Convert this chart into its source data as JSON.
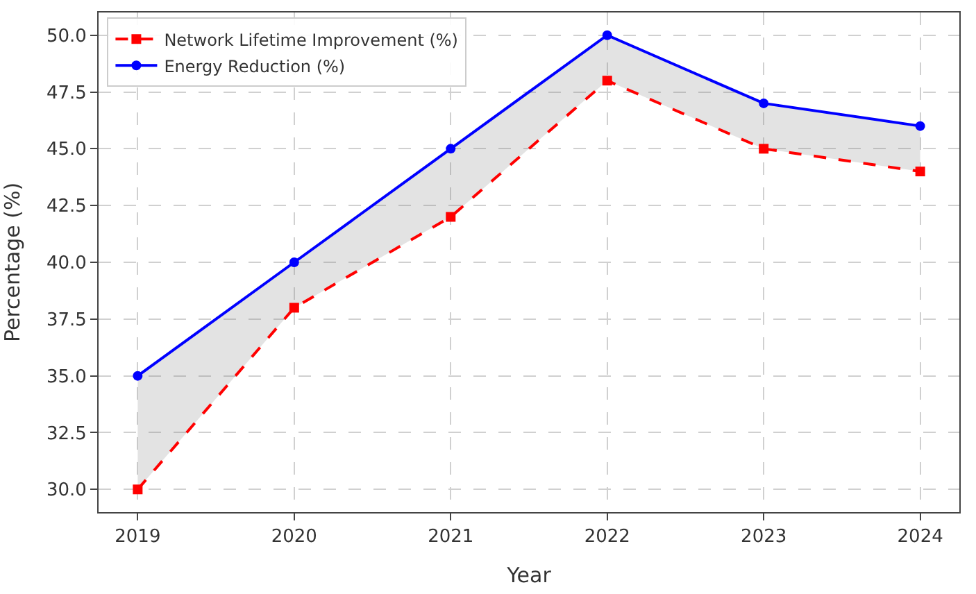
{
  "chart_data": {
    "type": "line",
    "xlabel": "Year",
    "ylabel": "Percentage (%)",
    "x": [
      2019,
      2020,
      2021,
      2022,
      2023,
      2024
    ],
    "xlim": [
      2018.75,
      2024.25
    ],
    "xticks": [
      2019,
      2020,
      2021,
      2022,
      2023,
      2024
    ],
    "ylim": [
      29,
      51
    ],
    "yticks": [
      {
        "value": 30,
        "label": "30.0"
      },
      {
        "value": 32.5,
        "label": "32.5"
      },
      {
        "value": 35,
        "label": "35.0"
      },
      {
        "value": 37.5,
        "label": "37.5"
      },
      {
        "value": 40,
        "label": "40.0"
      },
      {
        "value": 42.5,
        "label": "42.5"
      },
      {
        "value": 45,
        "label": "45.0"
      },
      {
        "value": 47.5,
        "label": "47.5"
      },
      {
        "value": 50,
        "label": "50.0"
      }
    ],
    "grid": true,
    "legend": "top left",
    "series": [
      {
        "name": "Energy Reduction (%)",
        "color": "#0000ff",
        "marker": "circle",
        "line_style": "solid",
        "values": [
          35,
          40,
          45,
          50,
          47,
          46
        ],
        "lower": [
          30,
          38,
          42,
          48,
          45,
          44
        ],
        "upper": [
          35,
          40,
          45,
          50,
          47,
          46
        ]
      },
      {
        "name": "Network Lifetime Improvement (%)",
        "color": "#ff0000",
        "marker": "square",
        "line_style": "dashed",
        "values": [
          30,
          38,
          42,
          48,
          45,
          44
        ]
      }
    ]
  }
}
